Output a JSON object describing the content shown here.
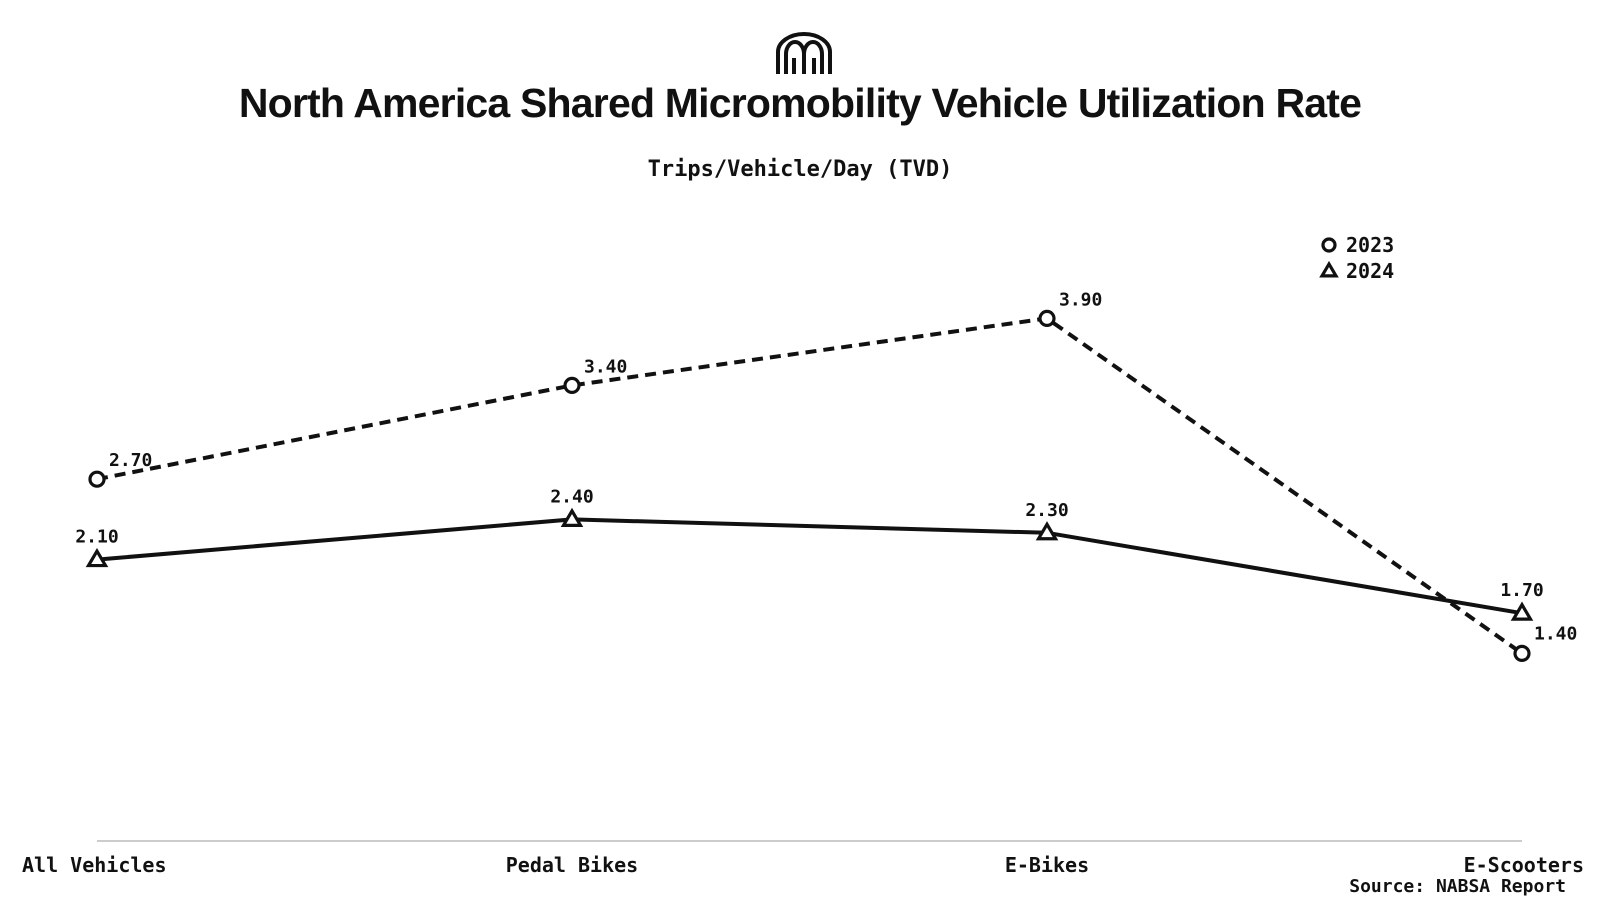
{
  "logo": {
    "icon": "nabsa-m-icon"
  },
  "chart_data": {
    "type": "line",
    "title": "North America Shared Micromobility Vehicle Utilization Rate",
    "subtitle": "Trips/Vehicle/Day (TVD)",
    "categories": [
      "All Vehicles",
      "Pedal Bikes",
      "E-Bikes",
      "E-Scooters"
    ],
    "series": [
      {
        "name": "2023",
        "values": [
          2.7,
          3.4,
          3.9,
          1.4
        ],
        "labels": [
          "2.70",
          "3.40",
          "3.90",
          "1.40"
        ],
        "marker": "circle",
        "line_style": "dashed",
        "color": "#111111"
      },
      {
        "name": "2024",
        "values": [
          2.1,
          2.4,
          2.3,
          1.7
        ],
        "labels": [
          "2.10",
          "2.40",
          "2.30",
          "1.70"
        ],
        "marker": "triangle",
        "line_style": "solid",
        "color": "#111111"
      }
    ],
    "ylim": [
      0.0,
      5.0
    ],
    "grid": false,
    "legend_position": "top-right",
    "source": "Source: NABSA Report"
  },
  "colors": {
    "ink": "#111111",
    "axis": "#bbbbbb",
    "background": "#ffffff"
  }
}
